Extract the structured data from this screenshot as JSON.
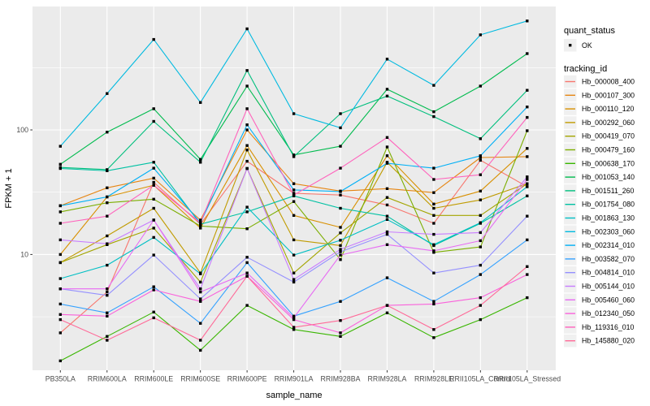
{
  "figure": {
    "background": "#FFFFFF",
    "panel_background": "#EBEBEB",
    "grid_color": "#FFFFFF",
    "tick_color": "#333333",
    "axis_text_color": "#4D4D4D",
    "title_color": "#000000",
    "legend_key_fill": "#F0F0F0",
    "marker_color": "#000000"
  },
  "axes": {
    "x_title": "sample_name",
    "y_title": "FPKM + 1",
    "y_tick_labels": [
      "100",
      "10"
    ]
  },
  "legend": {
    "quant_status": {
      "title": "quant_status",
      "ok_label": "OK",
      "symbol": "black-square-point"
    },
    "tracking_id": {
      "title": "tracking_id"
    }
  },
  "chart_data": {
    "type": "line",
    "title": "",
    "xlabel": "sample_name",
    "ylabel": "FPKM + 1",
    "y_scale": "log10",
    "y_major_ticks": [
      10,
      100
    ],
    "y_minor_ticks": [
      3.162,
      31.62,
      316.2
    ],
    "y_range_approx": [
      1.2,
      980
    ],
    "grid": true,
    "legend_position": "right",
    "marker": "black-square",
    "categories": [
      "PB350LA",
      "RRIM600LA",
      "RRIM600LE",
      "RRIM600SE",
      "RRIM600PE",
      "RRIM901LA",
      "RRIM928BA",
      "RRIM928LA",
      "RRIM928LE",
      "RRII105LA_Control",
      "RRII105LA_Stressed"
    ],
    "series": [
      {
        "name": "Hb_000008_400",
        "color": "#F8766D",
        "values": [
          2.35,
          5.0,
          38,
          17.5,
          56,
          31,
          30,
          25,
          17.8,
          57,
          35
        ]
      },
      {
        "name": "Hb_000107_300",
        "color": "#E68613",
        "values": [
          24.6,
          34.3,
          41,
          18.9,
          100,
          37,
          32.3,
          33.8,
          31.4,
          60,
          61
        ]
      },
      {
        "name": "Hb_000110_120",
        "color": "#D89000",
        "values": [
          10,
          29,
          36,
          16.3,
          75,
          20.6,
          16.5,
          62,
          25.4,
          32.3,
          71
        ]
      },
      {
        "name": "Hb_000292_060",
        "color": "#C09B00",
        "values": [
          8.6,
          14.1,
          23.5,
          7.1,
          69,
          13.1,
          11.8,
          55,
          23.5,
          27.4,
          37
        ]
      },
      {
        "name": "Hb_000419_070",
        "color": "#A3A500",
        "values": [
          8.6,
          12,
          16.3,
          6.0,
          49,
          7.1,
          14.9,
          28.7,
          20.6,
          20.6,
          37
        ]
      },
      {
        "name": "Hb_000479_160",
        "color": "#7CAE00",
        "values": [
          22,
          26,
          27.8,
          16.9,
          16.1,
          26.6,
          9.1,
          73,
          10.4,
          11.5,
          98.5
        ]
      },
      {
        "name": "Hb_000638_170",
        "color": "#39B600",
        "values": [
          1.4,
          2.2,
          3.45,
          1.7,
          3.9,
          2.5,
          2.2,
          3.4,
          2.15,
          3.0,
          4.5
        ]
      },
      {
        "name": "Hb_001053_140",
        "color": "#00BB4E",
        "values": [
          53,
          96,
          148,
          58,
          225,
          63,
          74,
          212,
          140,
          225,
          410
        ]
      },
      {
        "name": "Hb_001511_260",
        "color": "#00BF7D",
        "values": [
          50,
          48,
          117,
          55,
          300,
          61,
          135,
          187,
          128,
          85,
          208
        ]
      },
      {
        "name": "Hb_001754_080",
        "color": "#00C1A3",
        "values": [
          49,
          47,
          55,
          17.5,
          22,
          29.5,
          23.5,
          20.3,
          11.8,
          17.8,
          29.5
        ]
      },
      {
        "name": "Hb_001863_130",
        "color": "#00BFC4",
        "values": [
          6.4,
          8.2,
          13.7,
          7.0,
          24,
          9.9,
          13,
          19.1,
          12,
          18,
          35
        ]
      },
      {
        "name": "Hb_002303_060",
        "color": "#00BAE0",
        "values": [
          74,
          196,
          532,
          166,
          648,
          135,
          104,
          370,
          228,
          580,
          750
        ]
      },
      {
        "name": "Hb_002314_010",
        "color": "#00B0F6",
        "values": [
          24.6,
          29,
          49.3,
          18,
          110,
          33,
          32,
          54,
          49.3,
          62,
          153
        ]
      },
      {
        "name": "Hb_003582_070",
        "color": "#35A2FF",
        "values": [
          4.0,
          3.4,
          5.5,
          2.8,
          8.6,
          3.2,
          4.2,
          6.5,
          4.2,
          6.9,
          13.1
        ]
      },
      {
        "name": "Hb_004814_010",
        "color": "#9590FF",
        "values": [
          5.3,
          4.7,
          9.9,
          4.4,
          9.5,
          6.0,
          10.5,
          14.5,
          7.1,
          8.2,
          20.3
        ]
      },
      {
        "name": "Hb_005144_010",
        "color": "#C77CFF",
        "values": [
          13.1,
          12.2,
          18.9,
          5.3,
          49,
          6.3,
          11,
          15.2,
          14.5,
          15,
          42
        ]
      },
      {
        "name": "Hb_005460_060",
        "color": "#E76BF3",
        "values": [
          5.3,
          5.3,
          18.9,
          5.0,
          7.1,
          3.1,
          9.9,
          12.0,
          10.7,
          12.9,
          40
        ]
      },
      {
        "name": "Hb_012340_050",
        "color": "#FA62DB",
        "values": [
          3.3,
          3.2,
          5.2,
          4.2,
          6.7,
          3.0,
          2.35,
          3.9,
          4.0,
          4.5,
          6.9
        ]
      },
      {
        "name": "Hb_119316_010",
        "color": "#FF62BC",
        "values": [
          17.8,
          20.3,
          36,
          18,
          148,
          30,
          49.3,
          87,
          40,
          43.7,
          126
        ]
      },
      {
        "name": "Hb_145880_020",
        "color": "#FF6A98",
        "values": [
          3.0,
          2.05,
          3.1,
          2.05,
          6.7,
          2.6,
          2.95,
          3.9,
          2.5,
          3.9,
          8.0
        ]
      }
    ]
  }
}
